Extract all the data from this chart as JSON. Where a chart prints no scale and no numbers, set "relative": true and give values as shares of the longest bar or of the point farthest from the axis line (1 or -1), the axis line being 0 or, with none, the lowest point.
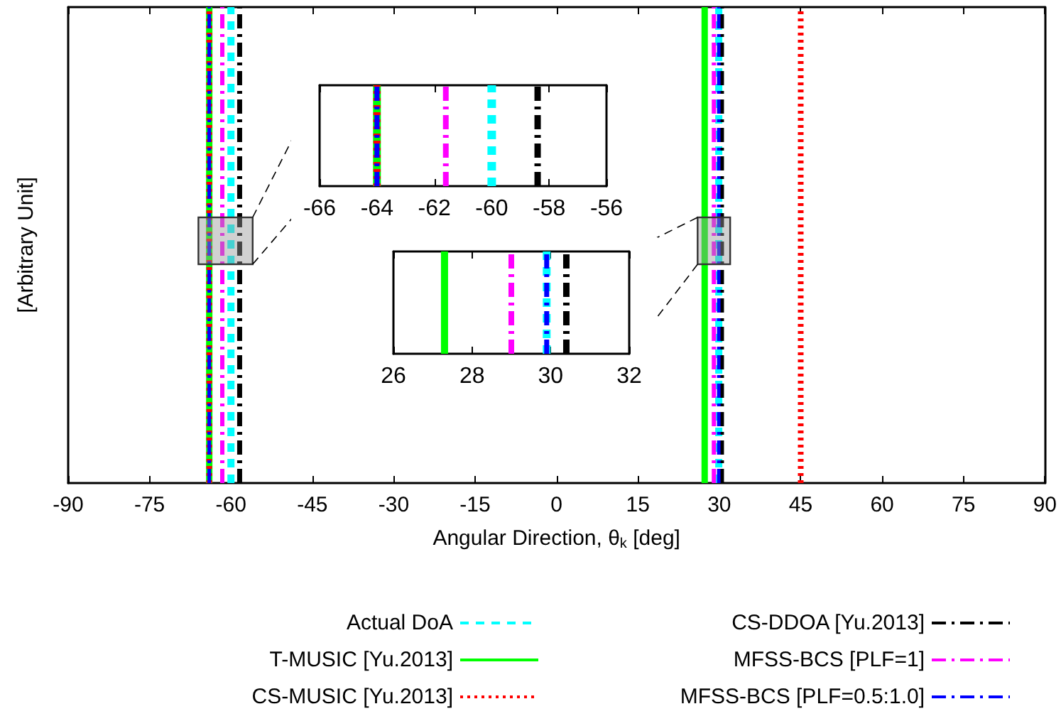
{
  "chart_data": [
    {
      "type": "line",
      "relative": true,
      "xlabel": "Angular Direction, θ$_{k}$ [deg]",
      "ylabel": "[Arbitrary Unit]",
      "xlim": [
        -90,
        90
      ],
      "xticks": [
        -90,
        -75,
        -60,
        -45,
        -30,
        -15,
        0,
        15,
        30,
        45,
        60,
        75,
        90
      ],
      "legend": "bottom",
      "grid": false,
      "series": [
        {
          "name": "Actual DoA",
          "color": "#00ffff",
          "line_style": "dashed",
          "x": [
            -60,
            -60,
            29.9,
            29.9
          ],
          "values": [
            0,
            1,
            0,
            1
          ]
        },
        {
          "name": "T-MUSIC [Yu.2013]",
          "color": "#00ff00",
          "line_style": "solid",
          "x": [
            -64,
            -64,
            27.3,
            27.3
          ],
          "values": [
            0,
            1,
            0,
            1
          ]
        },
        {
          "name": "CS-MUSIC [Yu.2013]",
          "color": "#ff0000",
          "line_style": "dotted",
          "x": [
            -64,
            -64,
            45,
            45
          ],
          "values": [
            0,
            1,
            0,
            1
          ]
        },
        {
          "name": "CS-DDOA [Yu.2013]",
          "color": "#000000",
          "line_style": "dashdot",
          "x": [
            -58.4,
            -58.4,
            30.4,
            30.4
          ],
          "values": [
            0,
            1,
            0,
            1
          ]
        },
        {
          "name": "MFSS-BCS [PLF=1]",
          "color": "#ff00ff",
          "line_style": "dashdot",
          "x": [
            -61.6,
            -61.6,
            29,
            29
          ],
          "values": [
            0,
            1,
            0,
            1
          ]
        },
        {
          "name": "MFSS-BCS [PLF=0.5:1.0]",
          "color": "#0000ff",
          "line_style": "dashdot",
          "x": [
            -64,
            -64,
            29.9,
            29.9
          ],
          "values": [
            0,
            1,
            0,
            1
          ]
        }
      ]
    },
    {
      "type": "line",
      "relative": true,
      "xlim": [
        -66,
        -56
      ],
      "xticks": [
        -66,
        -64,
        -62,
        -60,
        -58,
        -56
      ],
      "grid": false,
      "series": [
        {
          "color": "#00ffff",
          "line_style": "dashed",
          "x": [
            -60,
            -60
          ],
          "values": [
            0,
            1
          ]
        },
        {
          "color": "#00ff00",
          "line_style": "solid",
          "x": [
            -64,
            -64
          ],
          "values": [
            0,
            1
          ]
        },
        {
          "color": "#ff0000",
          "line_style": "dotted",
          "x": [
            -64,
            -64
          ],
          "values": [
            0,
            1
          ]
        },
        {
          "color": "#000000",
          "line_style": "dashdot",
          "x": [
            -58.4,
            -58.4
          ],
          "values": [
            0,
            1
          ]
        },
        {
          "color": "#ff00ff",
          "line_style": "dashdot",
          "x": [
            -61.6,
            -61.6
          ],
          "values": [
            0,
            1
          ]
        },
        {
          "color": "#0000ff",
          "line_style": "dashdot",
          "x": [
            -64,
            -64
          ],
          "values": [
            0,
            1
          ]
        }
      ]
    },
    {
      "type": "line",
      "relative": true,
      "xlim": [
        26,
        32
      ],
      "xticks": [
        26,
        28,
        30,
        32
      ],
      "grid": false,
      "series": [
        {
          "color": "#00ffff",
          "line_style": "dashed",
          "x": [
            29.9,
            29.9
          ],
          "values": [
            0,
            1
          ]
        },
        {
          "color": "#00ff00",
          "line_style": "solid",
          "x": [
            27.3,
            27.3
          ],
          "values": [
            0,
            1
          ]
        },
        {
          "color": "#000000",
          "line_style": "dashdot",
          "x": [
            30.4,
            30.4
          ],
          "values": [
            0,
            1
          ]
        },
        {
          "color": "#ff00ff",
          "line_style": "dashdot",
          "x": [
            29,
            29
          ],
          "values": [
            0,
            1
          ]
        },
        {
          "color": "#0000ff",
          "line_style": "dashdot",
          "x": [
            29.9,
            29.9
          ],
          "values": [
            0,
            1
          ]
        }
      ]
    }
  ]
}
